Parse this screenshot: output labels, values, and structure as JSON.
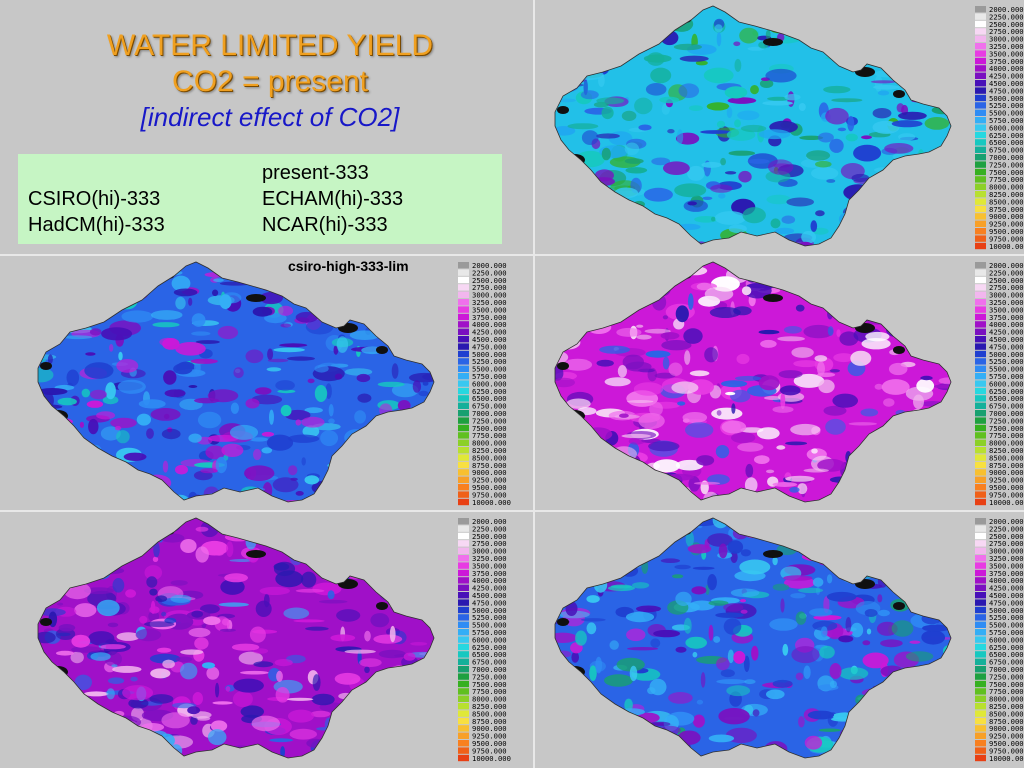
{
  "title": {
    "line1": "WATER LIMITED YIELD",
    "line2": "CO2 = present",
    "line3": "[indirect effect of CO2]"
  },
  "legend": {
    "top": "present-333",
    "left1": "CSIRO(hi)-333",
    "right1": "ECHAM(hi)-333",
    "left2": "HadCM(hi)-333",
    "right2": "NCAR(hi)-333"
  },
  "panels": [
    {
      "id": "present",
      "label": "",
      "scheme": "cool"
    },
    {
      "id": "csiro",
      "label": "csiro-high-333-lim",
      "scheme": "blue"
    },
    {
      "id": "echam",
      "label": "",
      "scheme": "magenta"
    },
    {
      "id": "hadcm",
      "label": "",
      "scheme": "violet"
    },
    {
      "id": "ncar",
      "label": "",
      "scheme": "mixed"
    }
  ],
  "colorbar": {
    "labels": [
      "2000.000",
      "2250.000",
      "2500.000",
      "2750.000",
      "3000.000",
      "3250.000",
      "3500.000",
      "3750.000",
      "4000.000",
      "4250.000",
      "4500.000",
      "4750.000",
      "5000.000",
      "5250.000",
      "5500.000",
      "5750.000",
      "6000.000",
      "6250.000",
      "6500.000",
      "6750.000",
      "7000.000",
      "7250.000",
      "7500.000",
      "7750.000",
      "8000.000",
      "8250.000",
      "8500.000",
      "8750.000",
      "9000.000",
      "9250.000",
      "9500.000",
      "9750.000",
      "10000.000"
    ],
    "colors": [
      "#9a9a9a",
      "#e8e8e8",
      "#ffffff",
      "#f7d8f4",
      "#f2b6ee",
      "#f070ec",
      "#e83be3",
      "#cc18d8",
      "#a010c8",
      "#7a10c0",
      "#4810b8",
      "#2a18b0",
      "#1f3fd0",
      "#2a64e6",
      "#2f8cf4",
      "#34aef6",
      "#38c8f0",
      "#26d8e0",
      "#16c8c0",
      "#14b09a",
      "#18a070",
      "#1ea040",
      "#36b020",
      "#60c020",
      "#8cd028",
      "#b8e030",
      "#e0e838",
      "#f8e040",
      "#f8c030",
      "#f8a028",
      "#f88020",
      "#f06018",
      "#e84014"
    ]
  }
}
